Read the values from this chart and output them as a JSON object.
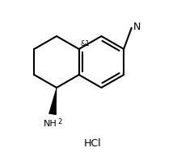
{
  "background_color": "#ffffff",
  "line_color": "#000000",
  "line_width": 1.5,
  "text_color": "#000000",
  "font_size_n": 9,
  "font_size_nh2": 8,
  "font_size_sub": 6,
  "font_size_hcl": 9,
  "font_size_stereo": 6,
  "hcl_text": "HCl",
  "stereo_label": "&1",
  "cn_n_text": "N",
  "nh2_main": "NH",
  "nh2_sub": "2"
}
